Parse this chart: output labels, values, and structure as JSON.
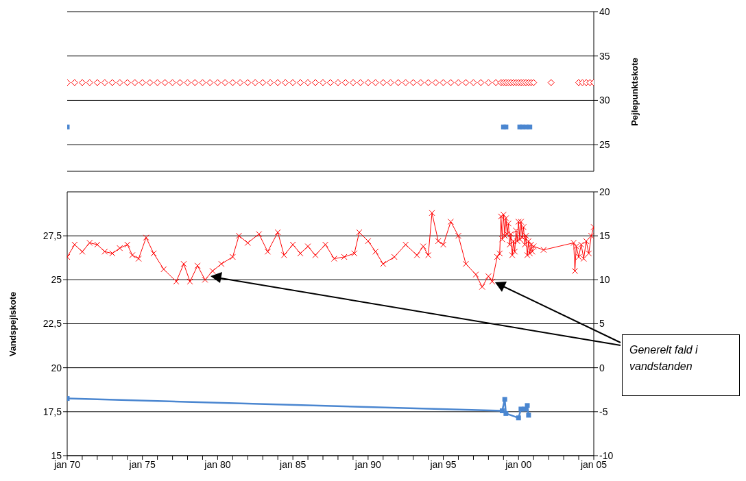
{
  "chart_data": [
    {
      "type": "scatter",
      "ylabel": "Pejlepunktskote",
      "xlim": [
        "1970-01",
        "2005-01"
      ],
      "ylim": [
        22,
        40
      ],
      "yticks": [
        25,
        30,
        35,
        40
      ],
      "grid": "y",
      "tick_labels": "y",
      "series": [
        {
          "marker": "diamond",
          "color": "#ff0000",
          "x": [
            "1970-01",
            "1970-07",
            "1971-01",
            "1971-07",
            "1972-01",
            "1972-07",
            "1973-01",
            "1973-07",
            "1974-01",
            "1974-07",
            "1975-01",
            "1975-07",
            "1976-01",
            "1976-07",
            "1977-01",
            "1977-07",
            "1978-01",
            "1978-07",
            "1979-01",
            "1979-07",
            "1980-01",
            "1980-07",
            "1981-01",
            "1981-07",
            "1982-01",
            "1982-07",
            "1983-01",
            "1983-07",
            "1984-01",
            "1984-07",
            "1985-01",
            "1985-07",
            "1986-01",
            "1986-07",
            "1987-01",
            "1987-07",
            "1988-01",
            "1988-07",
            "1989-01",
            "1989-07",
            "1990-01",
            "1990-07",
            "1991-01",
            "1991-07",
            "1992-01",
            "1992-07",
            "1993-01",
            "1993-07",
            "1994-01",
            "1994-07",
            "1995-01",
            "1995-07",
            "1996-01",
            "1996-07",
            "1997-01",
            "1997-07",
            "1998-01",
            "1998-07",
            "1998-11",
            "1999-01",
            "1999-03",
            "1999-05",
            "1999-07",
            "1999-09",
            "1999-11",
            "2000-01",
            "2000-03",
            "2000-05",
            "2000-07",
            "2000-09",
            "2000-11",
            "2001-01",
            "2002-03",
            "2004-01",
            "2004-04",
            "2004-07",
            "2004-10",
            "2005-01"
          ],
          "values": [
            32,
            32,
            32,
            32,
            32,
            32,
            32,
            32,
            32,
            32,
            32,
            32,
            32,
            32,
            32,
            32,
            32,
            32,
            32,
            32,
            32,
            32,
            32,
            32,
            32,
            32,
            32,
            32,
            32,
            32,
            32,
            32,
            32,
            32,
            32,
            32,
            32,
            32,
            32,
            32,
            32,
            32,
            32,
            32,
            32,
            32,
            32,
            32,
            32,
            32,
            32,
            32,
            32,
            32,
            32,
            32,
            32,
            32,
            32,
            32,
            32,
            32,
            32,
            32,
            32,
            32,
            32,
            32,
            32,
            32,
            32,
            32,
            32,
            32,
            32,
            32,
            32,
            32
          ]
        },
        {
          "marker": "square",
          "color": "#4a86d0",
          "x": [
            "1970-01",
            "1999-01",
            "1999-03",
            "2000-02",
            "2000-04",
            "2000-07",
            "2000-10"
          ],
          "values": [
            27,
            27,
            27,
            27,
            27,
            27,
            27
          ]
        }
      ]
    },
    {
      "type": "line",
      "ylabel": "Vandspejlskote",
      "xlim": [
        "1970-01",
        "2005-01"
      ],
      "xticks": [
        {
          "value": "1970-01",
          "label": "jan 70"
        },
        {
          "value": "1971-01",
          "label": null
        },
        {
          "value": "1972-01",
          "label": null
        },
        {
          "value": "1973-01",
          "label": null
        },
        {
          "value": "1974-01",
          "label": null
        },
        {
          "value": "1975-01",
          "label": "jan 75"
        },
        {
          "value": "1976-01",
          "label": null
        },
        {
          "value": "1977-01",
          "label": null
        },
        {
          "value": "1978-01",
          "label": null
        },
        {
          "value": "1979-01",
          "label": null
        },
        {
          "value": "1980-01",
          "label": "jan 80"
        },
        {
          "value": "1981-01",
          "label": null
        },
        {
          "value": "1982-01",
          "label": null
        },
        {
          "value": "1983-01",
          "label": null
        },
        {
          "value": "1984-01",
          "label": null
        },
        {
          "value": "1985-01",
          "label": "jan 85"
        },
        {
          "value": "1986-01",
          "label": null
        },
        {
          "value": "1987-01",
          "label": null
        },
        {
          "value": "1988-01",
          "label": null
        },
        {
          "value": "1989-01",
          "label": null
        },
        {
          "value": "1990-01",
          "label": "jan 90"
        },
        {
          "value": "1991-01",
          "label": null
        },
        {
          "value": "1992-01",
          "label": null
        },
        {
          "value": "1993-01",
          "label": null
        },
        {
          "value": "1994-01",
          "label": null
        },
        {
          "value": "1995-01",
          "label": "jan 95"
        },
        {
          "value": "1996-01",
          "label": null
        },
        {
          "value": "1997-01",
          "label": null
        },
        {
          "value": "1998-01",
          "label": null
        },
        {
          "value": "1999-01",
          "label": null
        },
        {
          "value": "2000-01",
          "label": "jan 00"
        },
        {
          "value": "2001-01",
          "label": null
        },
        {
          "value": "2002-01",
          "label": null
        },
        {
          "value": "2003-01",
          "label": null
        },
        {
          "value": "2004-01",
          "label": null
        },
        {
          "value": "2005-01",
          "label": "jan 05"
        }
      ],
      "ylim": [
        15,
        30
      ],
      "yticks": [
        15,
        {
          "value": 17.5,
          "label": "17,5"
        },
        20,
        {
          "value": 22.5,
          "label": "22,5"
        },
        25,
        {
          "value": 27.5,
          "label": "27,5"
        }
      ],
      "y2lim": [
        -10,
        20
      ],
      "y2ticks": [
        -10,
        -5,
        0,
        5,
        10,
        15,
        20
      ],
      "grid": "y",
      "annotations": [
        "Generelt fald i vandstanden"
      ],
      "series": [
        {
          "marker": "cross",
          "color": "#ff0000",
          "x": [
            "1970-01",
            "1970-07",
            "1971-01",
            "1971-07",
            "1972-01",
            "1972-07",
            "1973-01",
            "1973-07",
            "1974-01",
            "1974-05",
            "1974-10",
            "1975-04",
            "1975-10",
            "1976-06",
            "1977-04",
            "1977-10",
            "1978-03",
            "1978-09",
            "1979-03",
            "1979-09",
            "1980-04",
            "1981-01",
            "1981-06",
            "1982-01",
            "1982-10",
            "1983-05",
            "1984-01",
            "1984-06",
            "1985-01",
            "1985-07",
            "1986-01",
            "1986-07",
            "1987-03",
            "1987-10",
            "1988-06",
            "1989-02",
            "1989-06",
            "1990-01",
            "1990-07",
            "1991-01",
            "1991-10",
            "1992-07",
            "1993-04",
            "1993-09",
            "1994-01",
            "1994-04",
            "1994-09",
            "1995-01",
            "1995-07",
            "1996-01",
            "1996-07",
            "1997-03",
            "1997-08",
            "1998-01",
            "1998-04",
            "1998-08",
            "1998-10",
            "1998-11",
            "1998-12",
            "1999-01",
            "1999-02",
            "1999-03",
            "1999-04",
            "1999-05",
            "1999-06",
            "1999-07",
            "1999-08",
            "1999-09",
            "1999-10",
            "1999-11",
            "1999-12",
            "2000-01",
            "2000-02",
            "2000-03",
            "2000-04",
            "2000-05",
            "2000-06",
            "2000-07",
            "2000-08",
            "2000-09",
            "2000-10",
            "2000-11",
            "2000-12",
            "2001-01",
            "2001-09",
            "2003-09",
            "2003-10",
            "2003-11",
            "2004-01",
            "2004-03",
            "2004-05",
            "2004-07",
            "2004-09",
            "2004-11",
            "2005-01"
          ],
          "values": [
            26.3,
            27.0,
            26.6,
            27.1,
            27.0,
            26.6,
            26.5,
            26.8,
            27.0,
            26.4,
            26.2,
            27.4,
            26.5,
            25.6,
            24.9,
            25.9,
            24.9,
            25.8,
            25.0,
            25.5,
            25.9,
            26.3,
            27.5,
            27.1,
            27.6,
            26.6,
            27.7,
            26.4,
            27.0,
            26.5,
            26.9,
            26.4,
            27.0,
            26.2,
            26.3,
            26.5,
            27.7,
            27.2,
            26.6,
            25.9,
            26.3,
            27.0,
            26.4,
            26.9,
            26.4,
            28.8,
            27.2,
            27.0,
            28.3,
            27.5,
            25.9,
            25.3,
            24.6,
            25.2,
            24.9,
            26.3,
            26.5,
            28.6,
            27.3,
            28.7,
            27.5,
            28.5,
            27.6,
            28.2,
            27.0,
            27.6,
            26.4,
            27.2,
            26.6,
            27.8,
            27.2,
            28.3,
            27.3,
            28.3,
            27.4,
            28.0,
            27.0,
            27.5,
            26.4,
            27.2,
            26.5,
            27.0,
            26.6,
            26.9,
            26.7,
            27.1,
            25.5,
            26.9,
            26.3,
            27.0,
            26.2,
            27.2,
            26.5,
            27.5,
            28.0
          ]
        },
        {
          "marker": "square",
          "color": "#4a86d0",
          "x": [
            "1970-01",
            "1998-12",
            "1999-02",
            "1999-03",
            "2000-01",
            "2000-03",
            "2000-06",
            "2000-08",
            "2000-09"
          ],
          "values": [
            18.25,
            17.55,
            18.2,
            17.4,
            17.15,
            17.65,
            17.65,
            17.85,
            17.3
          ]
        }
      ]
    }
  ]
}
